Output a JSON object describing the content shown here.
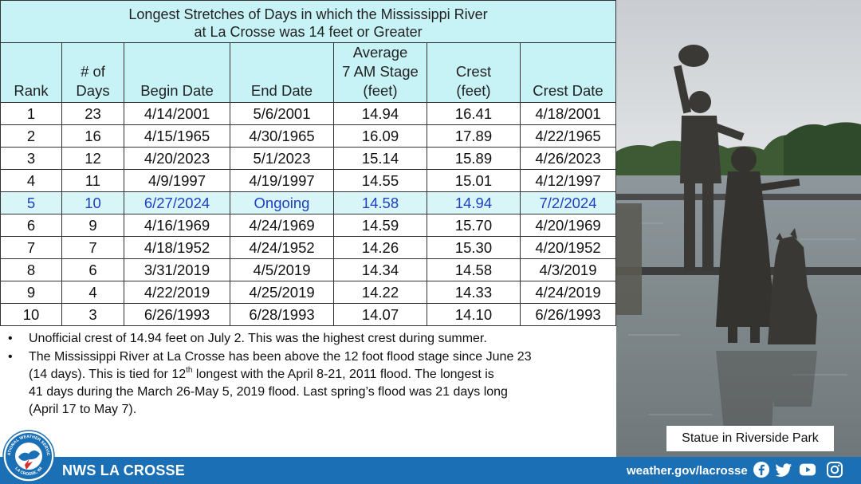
{
  "table": {
    "title_line1": "Longest Stretches of Days in which the Mississippi River",
    "title_line2": "at La Crosse was 14 feet or Greater",
    "headers": {
      "rank": "Rank",
      "days_1": "# of",
      "days_2": "Days",
      "begin": "Begin Date",
      "end": "End Date",
      "stage_1": "Average",
      "stage_2": "7 AM Stage",
      "stage_3": "(feet)",
      "crest_1": "Crest",
      "crest_2": "(feet)",
      "crest_date": "Crest Date"
    },
    "rows": [
      {
        "rank": "1",
        "days": "23",
        "begin": "4/14/2001",
        "end": "5/6/2001",
        "stage": "14.94",
        "crest": "16.41",
        "crest_date": "4/18/2001"
      },
      {
        "rank": "2",
        "days": "16",
        "begin": "4/15/1965",
        "end": "4/30/1965",
        "stage": "16.09",
        "crest": "17.89",
        "crest_date": "4/22/1965"
      },
      {
        "rank": "3",
        "days": "12",
        "begin": "4/20/2023",
        "end": "5/1/2023",
        "stage": "15.14",
        "crest": "15.89",
        "crest_date": "4/26/2023"
      },
      {
        "rank": "4",
        "days": "11",
        "begin": "4/9/1997",
        "end": "4/19/1997",
        "stage": "14.55",
        "crest": "15.01",
        "crest_date": "4/12/1997"
      },
      {
        "rank": "5",
        "days": "10",
        "begin": "6/27/2024",
        "end": "Ongoing",
        "stage": "14.58",
        "crest": "14.94",
        "crest_date": "7/2/2024"
      },
      {
        "rank": "6",
        "days": "9",
        "begin": "4/16/1969",
        "end": "4/24/1969",
        "stage": "14.59",
        "crest": "15.70",
        "crest_date": "4/20/1969"
      },
      {
        "rank": "7",
        "days": "7",
        "begin": "4/18/1952",
        "end": "4/24/1952",
        "stage": "14.26",
        "crest": "15.30",
        "crest_date": "4/20/1952"
      },
      {
        "rank": "8",
        "days": "6",
        "begin": "3/31/2019",
        "end": "4/5/2019",
        "stage": "14.34",
        "crest": "14.58",
        "crest_date": "4/3/2019"
      },
      {
        "rank": "9",
        "days": "4",
        "begin": "4/22/2019",
        "end": "4/25/2019",
        "stage": "14.22",
        "crest": "14.33",
        "crest_date": "4/24/2019"
      },
      {
        "rank": "10",
        "days": "3",
        "begin": "6/26/1993",
        "end": "6/28/1993",
        "stage": "14.07",
        "crest": "14.10",
        "crest_date": "6/26/1993"
      }
    ],
    "highlight_color": "#1f3fc2"
  },
  "notes": {
    "bullet": "•",
    "note1": "Unofficial crest of 14.94 feet on July 2. This was the highest crest during summer.",
    "note2_a": "The Mississippi River at La Crosse has been above the 12 foot flood stage since June 23",
    "note2_b": "(14 days).  This is tied for 12",
    "note2_sup": "th",
    "note2_c": " longest with the April 8-21, 2011 flood. The longest is",
    "note2_d": "41 days during the March 26-May 5, 2019 flood. Last spring’s flood was 21 days long",
    "note2_e": "(April 17 to May 7)."
  },
  "photo": {
    "caption": "Statue in Riverside Park"
  },
  "footer": {
    "org": "NWS LA CROSSE",
    "url": "weather.gov/lacrosse",
    "bar_color": "#1a6fb5",
    "icons": [
      "facebook-icon",
      "twitter-icon",
      "youtube-icon",
      "instagram-icon"
    ]
  },
  "logo": {
    "text_top": "NATIONAL WEATHER SERVICE",
    "text_bottom": "LA CROSSE, WI"
  }
}
